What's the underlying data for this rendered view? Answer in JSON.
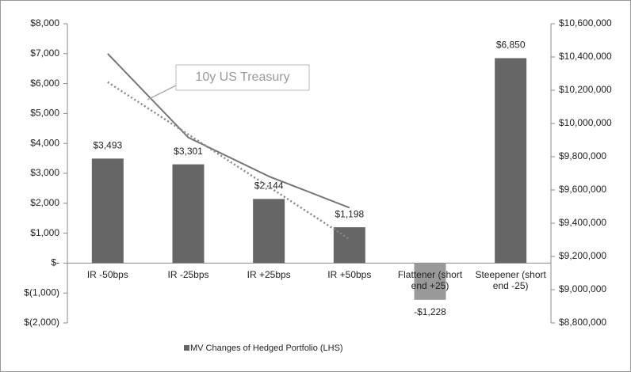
{
  "chart_data": {
    "type": "bar",
    "categories": [
      "IR -50bps",
      "IR -25bps",
      "IR +25bps",
      "IR +50bps",
      "Flattener (short end +25)",
      "Steepener (short end -25)"
    ],
    "series": [
      {
        "name": "MV Changes of Hedged Portfolio (LHS)",
        "color": "#666666",
        "highlight_color": "#999999",
        "values": [
          3493,
          3301,
          2144,
          1198,
          -1228,
          6850
        ],
        "value_labels": [
          "$3,493",
          "$3,301",
          "$2,144",
          "$1,198",
          "-$1,228",
          "$6,850"
        ]
      },
      {
        "type": "line",
        "axis": "y2",
        "color": "#777777",
        "dash": "solid",
        "values": [
          10420000,
          9916000,
          9682000,
          9493000,
          null,
          null
        ]
      },
      {
        "type": "line",
        "axis": "y2",
        "color": "#888888",
        "dash": "dotted",
        "values": [
          10249000,
          9934000,
          9619000,
          9304000,
          null,
          null
        ]
      }
    ],
    "annotation": "10y US Treasury",
    "ylim": [
      -2000,
      8000
    ],
    "yticks": [
      {
        "value": -2000,
        "label": "$(2,000)"
      },
      {
        "value": -1000,
        "label": "$(1,000)"
      },
      {
        "value": 0,
        "label": "$-"
      },
      {
        "value": 1000,
        "label": "$1,000"
      },
      {
        "value": 2000,
        "label": "$2,000"
      },
      {
        "value": 3000,
        "label": "$3,000"
      },
      {
        "value": 4000,
        "label": "$4,000"
      },
      {
        "value": 5000,
        "label": "$5,000"
      },
      {
        "value": 6000,
        "label": "$6,000"
      },
      {
        "value": 7000,
        "label": "$7,000"
      },
      {
        "value": 8000,
        "label": "$8,000"
      }
    ],
    "y2lim": [
      8800000,
      10600000
    ],
    "y2ticks": [
      {
        "value": 8800000,
        "label": "$8,800,000"
      },
      {
        "value": 9000000,
        "label": "$9,000,000"
      },
      {
        "value": 9200000,
        "label": "$9,200,000"
      },
      {
        "value": 9400000,
        "label": "$9,400,000"
      },
      {
        "value": 9600000,
        "label": "$9,600,000"
      },
      {
        "value": 9800000,
        "label": "$9,800,000"
      },
      {
        "value": 10000000,
        "label": "$10,000,000"
      },
      {
        "value": 10200000,
        "label": "$10,200,000"
      },
      {
        "value": 10400000,
        "label": "$10,400,000"
      },
      {
        "value": 10600000,
        "label": "$10,600,000"
      }
    ],
    "grid": false,
    "legend": "bottom"
  }
}
